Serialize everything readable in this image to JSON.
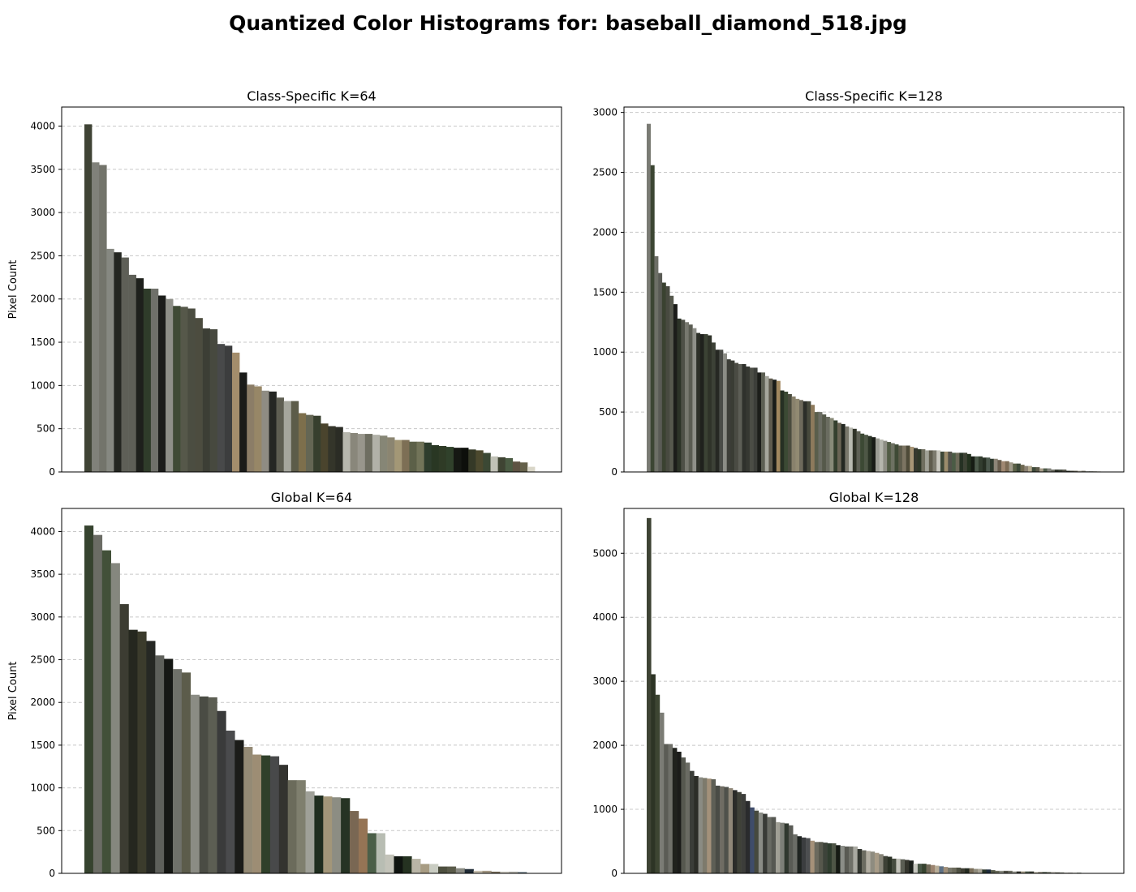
{
  "figure_title": "Quantized Color Histograms for: baseball_diamond_518.jpg",
  "colors": {
    "grid": "#c8c8c8",
    "axes": "#000000",
    "background": "#ffffff"
  },
  "chart_data": [
    {
      "type": "bar",
      "title": "Class-Specific K=64",
      "xlabel": "",
      "ylabel": "Pixel Count",
      "ylim": [
        0,
        4220
      ],
      "yticks": [
        0,
        500,
        1000,
        1500,
        2000,
        2500,
        3000,
        3500,
        4000
      ],
      "grid": "y-dashed",
      "values": [
        4020,
        3580,
        3550,
        2580,
        2540,
        2480,
        2280,
        2240,
        2120,
        2120,
        2040,
        2000,
        1920,
        1910,
        1890,
        1780,
        1660,
        1650,
        1480,
        1460,
        1380,
        1150,
        1010,
        990,
        940,
        930,
        860,
        820,
        820,
        680,
        660,
        650,
        560,
        530,
        520,
        460,
        450,
        440,
        440,
        430,
        420,
        400,
        370,
        370,
        350,
        350,
        340,
        310,
        300,
        290,
        280,
        280,
        260,
        250,
        220,
        180,
        170,
        160,
        120,
        110,
        60
      ],
      "colors": [
        "#3f4335",
        "#80817a",
        "#73746b",
        "#868881",
        "#242621",
        "#5e5f57",
        "#5e5f57",
        "#1e201c",
        "#2f3c2a",
        "#6f706a",
        "#1b1c1a",
        "#8e8f88",
        "#3f4a35",
        "#56584a",
        "#4b4d41",
        "#4c4c3f",
        "#3c3e35",
        "#47493f",
        "#48494a",
        "#3c3d3e",
        "#a38d6c",
        "#1a1b19",
        "#8b7d67",
        "#978767",
        "#8f8c83",
        "#252724",
        "#5e5e52",
        "#a5a69d",
        "#5c5c49",
        "#7d6f4c",
        "#646654",
        "#373f2e",
        "#4a442d",
        "#34352a",
        "#2b2c25",
        "#b7b7ad",
        "#89877b",
        "#98968c",
        "#6e6e61",
        "#b1b1a8",
        "#868676",
        "#8b8571",
        "#a39776",
        "#7d6f55",
        "#5c6048",
        "#727459",
        "#2e3d2d",
        "#293723",
        "#2f3b26",
        "#30412b",
        "#151813",
        "#0d0f0b",
        "#353927",
        "#4c492e",
        "#3b4834",
        "#c0c1b6",
        "#3f4433",
        "#4b5c44",
        "#5d5243",
        "#64604a",
        "#d9d6c8"
      ]
    },
    {
      "type": "bar",
      "title": "Class-Specific K=128",
      "xlabel": "",
      "ylabel": "",
      "ylim": [
        0,
        3045
      ],
      "yticks": [
        0,
        500,
        1000,
        1500,
        2000,
        2500,
        3000
      ],
      "grid": "y-dashed",
      "values": [
        2905,
        2560,
        1800,
        1660,
        1580,
        1550,
        1470,
        1400,
        1280,
        1270,
        1250,
        1230,
        1200,
        1160,
        1150,
        1150,
        1140,
        1080,
        1020,
        1020,
        990,
        940,
        930,
        910,
        900,
        900,
        880,
        870,
        870,
        830,
        830,
        800,
        780,
        770,
        760,
        680,
        670,
        650,
        630,
        610,
        600,
        590,
        590,
        560,
        500,
        500,
        480,
        460,
        450,
        430,
        410,
        400,
        380,
        370,
        360,
        340,
        320,
        310,
        300,
        290,
        280,
        270,
        260,
        250,
        240,
        230,
        220,
        220,
        220,
        210,
        200,
        190,
        190,
        180,
        180,
        180,
        180,
        170,
        170,
        170,
        160,
        160,
        160,
        160,
        150,
        130,
        130,
        130,
        120,
        120,
        110,
        110,
        100,
        90,
        90,
        80,
        70,
        70,
        60,
        50,
        50,
        40,
        40,
        30,
        30,
        30,
        20,
        20,
        20,
        20,
        10,
        10,
        10,
        10,
        10,
        5,
        5,
        5,
        5
      ],
      "colors": [
        "#7a7b74",
        "#3c4633",
        "#6d6f66",
        "#5a5b55",
        "#3a4230",
        "#484a40",
        "#56584d",
        "#1c1d1a",
        "#2c3327",
        "#4e5047",
        "#77786f",
        "#5a5c52",
        "#8f9089",
        "#2d3028",
        "#1f211d",
        "#3b4234",
        "#2f3329",
        "#3c4136",
        "#262823",
        "#4a4c47",
        "#8c8d86",
        "#3d3e38",
        "#3a3c34",
        "#4a4b43",
        "#5d5e56",
        "#2f312c",
        "#363832",
        "#4b4d45",
        "#3d3f3a",
        "#1c1e1a",
        "#5c5f53",
        "#a5a69c",
        "#5e5a4d",
        "#1a1c18",
        "#a1875e",
        "#263023",
        "#3b4a34",
        "#4a4c3e",
        "#88816c",
        "#918a72",
        "#6e6a5c",
        "#2c2e29",
        "#47493c",
        "#8d7a5c",
        "#5a5e4c",
        "#6b6d63",
        "#55594a",
        "#6a6c60",
        "#888a78",
        "#35402e",
        "#6a6454",
        "#242822",
        "#79776b",
        "#b9bab1",
        "#303328",
        "#5e6055",
        "#3c4934",
        "#4e5746",
        "#2b3426",
        "#1a1d17",
        "#9c9d94",
        "#b5b6ad",
        "#8e8e84",
        "#525c45",
        "#6d7162",
        "#3f4a36",
        "#5d5b4b",
        "#7c7462",
        "#4e4a38",
        "#a89677",
        "#36392f",
        "#2f3829",
        "#6f6e5f",
        "#a0a197",
        "#5f5c4d",
        "#7d7b6e",
        "#c9c8bf",
        "#3e4838",
        "#9b8b6b",
        "#52524a",
        "#4b5b45",
        "#6d6a59",
        "#263123",
        "#3e4335",
        "#24321f",
        "#161c14",
        "#4c5a4b",
        "#323d2f",
        "#262f23",
        "#4b584d",
        "#2e3a2e",
        "#8d8678",
        "#675c4c",
        "#a08872",
        "#7c6b55",
        "#a09a8a",
        "#5a6047",
        "#3d4939",
        "#6e6850",
        "#8a8172",
        "#b4aa90",
        "#3e4a3a",
        "#5c5a4a",
        "#a99f8c",
        "#4e5b49",
        "#82837c",
        "#6e6f65",
        "#30352b",
        "#3d4338",
        "#55554a",
        "#2c342a",
        "#4d4c40",
        "#6a6658",
        "#b5b2a6",
        "#848275",
        "#555d4f",
        "#3f4538",
        "#7a7768",
        "#c7c4b7"
      ]
    },
    {
      "type": "bar",
      "title": "Global K=64",
      "xlabel": "",
      "ylabel": "Pixel Count",
      "ylim": [
        0,
        4270
      ],
      "yticks": [
        0,
        500,
        1000,
        1500,
        2000,
        2500,
        3000,
        3500,
        4000
      ],
      "grid": "y-dashed",
      "values": [
        4070,
        3960,
        3780,
        3630,
        3150,
        2850,
        2830,
        2720,
        2550,
        2510,
        2390,
        2350,
        2090,
        2070,
        2060,
        1900,
        1670,
        1560,
        1480,
        1390,
        1380,
        1370,
        1270,
        1090,
        1090,
        960,
        910,
        900,
        890,
        880,
        730,
        640,
        470,
        470,
        220,
        200,
        200,
        170,
        110,
        110,
        80,
        80,
        60,
        50,
        30,
        30,
        20,
        20,
        20,
        15
      ],
      "colors": [
        "#36432f",
        "#6b6c65",
        "#425039",
        "#85877e",
        "#3c3c32",
        "#25271f",
        "#3b3b2c",
        "#262824",
        "#5e605b",
        "#161815",
        "#6f716a",
        "#5c5c4b",
        "#8b8c84",
        "#4a4c44",
        "#5c5e53",
        "#3a3b3b",
        "#4a4b4d",
        "#1b1c19",
        "#948a75",
        "#9d8d74",
        "#30402a",
        "#48494a",
        "#33332f",
        "#6b6b5b",
        "#7f7f6e",
        "#9fa098",
        "#1f2d1f",
        "#a29679",
        "#8c8d83",
        "#263324",
        "#796753",
        "#957455",
        "#4b5f48",
        "#b8bdb3",
        "#c3c3b9",
        "#0f1410",
        "#253221",
        "#b9b5a6",
        "#a79c83",
        "#c9ccc2",
        "#4d4f3f",
        "#5a5b4a",
        "#8a8b83",
        "#1f2a35",
        "#c7c0b0",
        "#a49885",
        "#7b6f5c",
        "#c9c6bc",
        "#b1b0a8",
        "#5b6e7a"
      ]
    },
    {
      "type": "bar",
      "title": "Global K=128",
      "xlabel": "",
      "ylabel": "",
      "ylim": [
        0,
        5700
      ],
      "yticks": [
        0,
        1000,
        2000,
        3000,
        4000,
        5000
      ],
      "grid": "y-dashed",
      "values": [
        5550,
        3110,
        2790,
        2510,
        2020,
        2020,
        1960,
        1900,
        1810,
        1730,
        1600,
        1520,
        1500,
        1490,
        1480,
        1470,
        1370,
        1360,
        1350,
        1330,
        1300,
        1270,
        1240,
        1130,
        1030,
        980,
        950,
        930,
        880,
        880,
        800,
        790,
        780,
        750,
        610,
        580,
        560,
        550,
        510,
        490,
        490,
        480,
        470,
        470,
        440,
        430,
        420,
        420,
        420,
        380,
        360,
        350,
        340,
        320,
        300,
        270,
        260,
        230,
        230,
        220,
        210,
        200,
        150,
        150,
        150,
        140,
        130,
        120,
        110,
        100,
        90,
        90,
        90,
        80,
        80,
        80,
        70,
        70,
        60,
        60,
        50,
        40,
        40,
        40,
        40,
        30,
        30,
        30,
        30,
        30,
        20,
        20,
        20,
        20,
        20,
        15,
        15,
        10,
        10,
        10,
        10,
        5,
        5,
        5,
        5
      ],
      "colors": [
        "#3e4334",
        "#2d3425",
        "#3d4532",
        "#7b7c75",
        "#5b5c55",
        "#6f7069",
        "#20221d",
        "#1b1c19",
        "#56584f",
        "#6a6b63",
        "#3b3d38",
        "#2c2d27",
        "#8a8b83",
        "#7d7a6c",
        "#a3917a",
        "#5e5f56",
        "#4a4c46",
        "#6f6c63",
        "#4f514b",
        "#8f8778",
        "#2b2c29",
        "#3f4138",
        "#3c3d3a",
        "#2a2b2d",
        "#3f4c6a",
        "#46493e",
        "#8a8c86",
        "#393b37",
        "#686a63",
        "#565852",
        "#a09f95",
        "#7d7f78",
        "#30382f",
        "#595b55",
        "#6b6d67",
        "#1f2421",
        "#3b3d3f",
        "#4c4e50",
        "#a59179",
        "#6b6a5e",
        "#56574c",
        "#3d433a",
        "#2f3c2e",
        "#4e5546",
        "#161a14",
        "#8b8d87",
        "#595a53",
        "#6f7068",
        "#a9a9a1",
        "#32352f",
        "#6b6b60",
        "#b0aca0",
        "#8e8c80",
        "#a79b87",
        "#868478",
        "#3d4136",
        "#293024",
        "#454b3e",
        "#c0c0b7",
        "#5b5e54",
        "#34352d",
        "#1a1f1b",
        "#c7c8c0",
        "#485646",
        "#36432f",
        "#716958",
        "#9b8470",
        "#b8ad98",
        "#5e7185",
        "#a08f79",
        "#79786b",
        "#6c6b5c",
        "#4d4f41",
        "#3d3d32",
        "#232a20",
        "#7a6e5a",
        "#8f8b7c",
        "#a8a497",
        "#273327",
        "#1d2a3a",
        "#555a4a",
        "#6a6c5c",
        "#8c8e84",
        "#505047",
        "#6d6e63",
        "#9a9b92",
        "#30322b",
        "#a49b86",
        "#4c5a4a",
        "#3b3e36",
        "#b1aa98",
        "#6d6554",
        "#2e3a2a",
        "#5d6254",
        "#a9a49a",
        "#3f4233",
        "#6f7264",
        "#8b8575",
        "#514c3e",
        "#b5b3aa",
        "#3b4632",
        "#6e6f62",
        "#8c8572",
        "#49513f",
        "#c0bdb2"
      ]
    }
  ]
}
